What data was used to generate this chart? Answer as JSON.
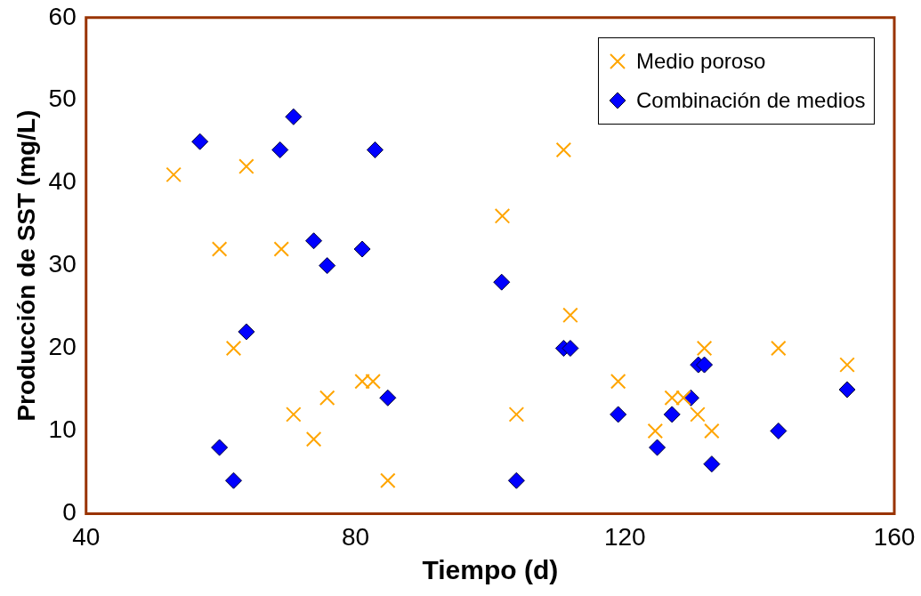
{
  "chart_data": {
    "type": "scatter",
    "xlabel": "Tiempo (d)",
    "ylabel": "Producción de SST (mg/L)",
    "xlim": [
      40,
      160
    ],
    "xticks": [
      40,
      80,
      120,
      160
    ],
    "ylim": [
      0,
      60
    ],
    "yticks": [
      0,
      10,
      20,
      30,
      40,
      50,
      60
    ],
    "grid": false,
    "legend": "top right",
    "series": [
      {
        "name": "Medio poroso",
        "color": "#ffa500",
        "marker": "cross",
        "x": [
          53,
          59.8,
          61.9,
          63.8,
          69,
          70.8,
          73.8,
          75.8,
          81,
          82.6,
          84.8,
          101.8,
          103.9,
          110.9,
          111.9,
          119,
          124.5,
          127,
          128.7,
          130.8,
          131.8,
          132.9,
          142.8,
          153
        ],
        "values": [
          41,
          32,
          20,
          42,
          32,
          12,
          9,
          14,
          16,
          16,
          4,
          36,
          12,
          44,
          24,
          16,
          10,
          14,
          14,
          12,
          20,
          10,
          20,
          18
        ]
      },
      {
        "name": "Combinación de medios",
        "color": "#0000ff",
        "marker": "diamond",
        "x": [
          56.9,
          59.8,
          61.9,
          63.8,
          68.8,
          70.8,
          73.8,
          75.8,
          81,
          82.9,
          84.8,
          101.7,
          103.9,
          110.9,
          111.9,
          119,
          124.8,
          127,
          129.8,
          130.9,
          131.8,
          132.9,
          142.8,
          153
        ],
        "values": [
          45,
          8,
          4,
          22,
          44,
          48,
          33,
          30,
          32,
          44,
          14,
          28,
          4,
          20,
          20,
          12,
          8,
          12,
          14,
          18,
          18,
          6,
          10,
          15
        ]
      }
    ]
  }
}
